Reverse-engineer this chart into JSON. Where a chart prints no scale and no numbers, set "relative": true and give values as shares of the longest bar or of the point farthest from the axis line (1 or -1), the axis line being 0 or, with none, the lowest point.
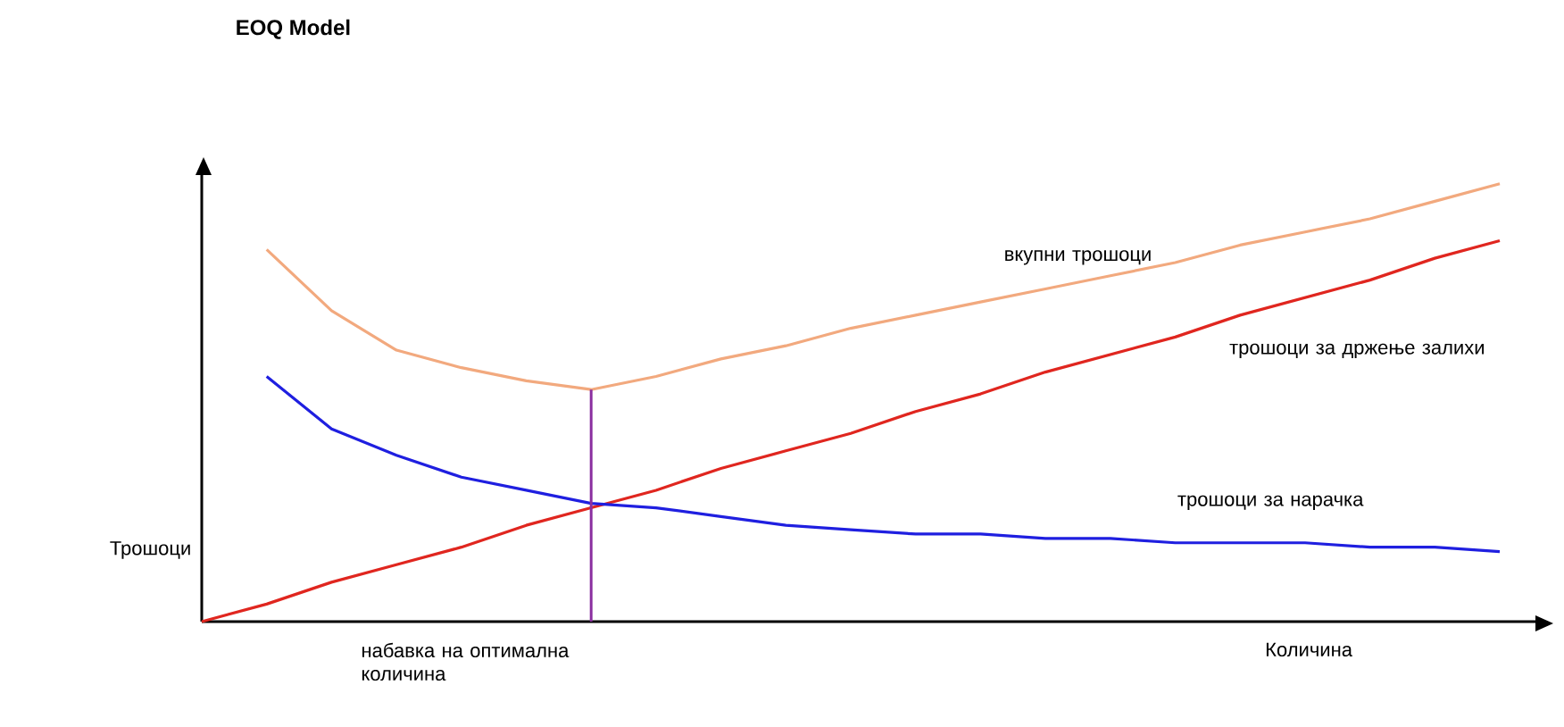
{
  "chart_data": {
    "type": "line",
    "title": "EOQ Model",
    "xlabel": "Количина",
    "ylabel": "Трошоци",
    "relative": true,
    "categories": [
      null,
      null,
      null,
      null,
      null,
      null,
      null,
      null,
      null,
      null,
      null,
      null,
      null,
      null,
      null,
      null,
      null,
      null,
      null,
      null,
      null
    ],
    "series": [
      {
        "name": "вкупни трошоци",
        "color": "#f2a97e",
        "values": [
          null,
          0.85,
          0.71,
          0.62,
          0.58,
          0.55,
          0.53,
          0.56,
          0.6,
          0.63,
          0.67,
          0.7,
          0.73,
          0.76,
          0.79,
          0.82,
          0.86,
          0.89,
          0.92,
          0.96,
          1.0
        ]
      },
      {
        "name": "трошоци за држење залихи",
        "color": "#e0261f",
        "values": [
          0,
          0.04,
          0.09,
          0.13,
          0.17,
          0.22,
          0.26,
          0.3,
          0.35,
          0.39,
          0.43,
          0.48,
          0.52,
          0.57,
          0.61,
          0.65,
          0.7,
          0.74,
          0.78,
          0.83,
          0.87
        ]
      },
      {
        "name": "трошоци за нарачка",
        "color": "#1f1fe0",
        "values": [
          null,
          0.56,
          0.44,
          0.38,
          0.33,
          0.3,
          0.27,
          0.26,
          0.24,
          0.22,
          0.21,
          0.2,
          0.2,
          0.19,
          0.19,
          0.18,
          0.18,
          0.18,
          0.17,
          0.17,
          0.16
        ]
      }
    ],
    "annotations": [
      "набавка на оптимална количина"
    ],
    "line_style": "solid",
    "marker": "none",
    "legend": false
  }
}
